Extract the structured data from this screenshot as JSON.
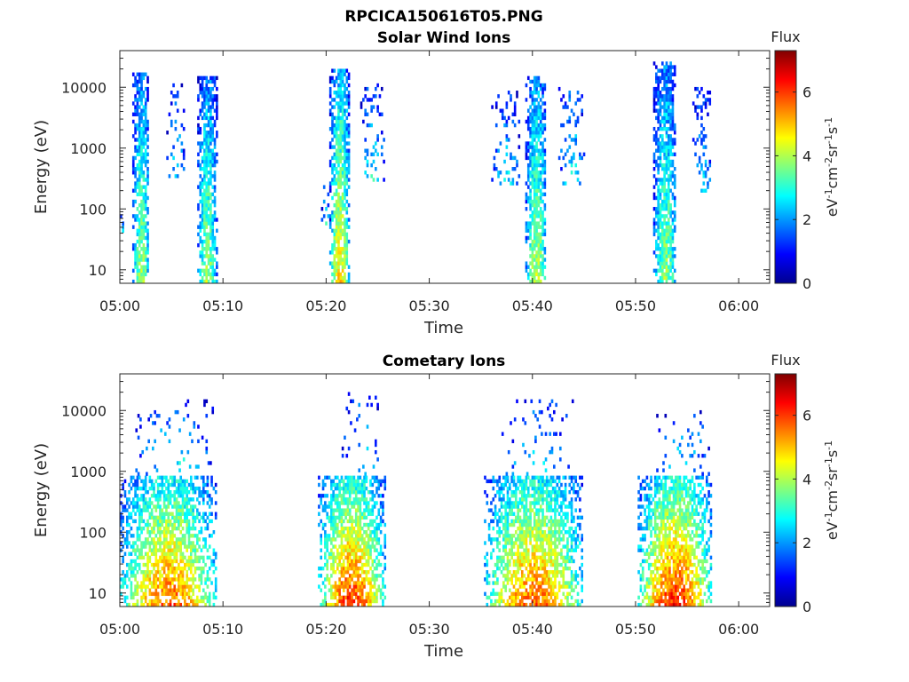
{
  "figure_title": "RPCICA150616T05.PNG",
  "chart_data": [
    {
      "type": "heatmap",
      "title": "Solar Wind Ions",
      "xlabel": "Time",
      "ylabel": "Energy (eV)",
      "x_ticks": [
        "05:00",
        "05:10",
        "05:20",
        "05:30",
        "05:40",
        "05:50",
        "06:00"
      ],
      "xlim": [
        "05:00",
        "06:03"
      ],
      "y_scale": "log",
      "y_ticks": [
        "10",
        "100",
        "1000",
        "10000"
      ],
      "ylim": [
        6,
        40000
      ],
      "grid": false,
      "colorbar": {
        "label_top": "Flux",
        "label": "eV-1cm-2sr-1s-1",
        "ticks": [
          "0",
          "2",
          "4",
          "6"
        ],
        "range": [
          0,
          7.3
        ],
        "colormap": "jet"
      },
      "bursts": [
        {
          "start_min": 0.0,
          "end_min": 0.3,
          "emin": 30,
          "emax": 90,
          "peak_flux": 3.0,
          "density": 0.5
        },
        {
          "start_min": 1.2,
          "end_min": 2.8,
          "emin": 6,
          "emax": 17000,
          "peak_flux": 4.0,
          "density": 0.85
        },
        {
          "start_min": 4.5,
          "end_min": 6.2,
          "emin": 300,
          "emax": 14000,
          "peak_flux": 2.5,
          "density": 0.2
        },
        {
          "start_min": 7.5,
          "end_min": 9.3,
          "emin": 6,
          "emax": 15000,
          "peak_flux": 4.0,
          "density": 0.85
        },
        {
          "start_min": 19.5,
          "end_min": 20.3,
          "emin": 40,
          "emax": 250,
          "peak_flux": 3.0,
          "density": 0.3
        },
        {
          "start_min": 20.3,
          "end_min": 22.2,
          "emin": 6,
          "emax": 20000,
          "peak_flux": 4.8,
          "density": 0.9
        },
        {
          "start_min": 23.3,
          "end_min": 25.5,
          "emin": 300,
          "emax": 11000,
          "peak_flux": 2.8,
          "density": 0.25
        },
        {
          "start_min": 36.0,
          "end_min": 38.7,
          "emin": 250,
          "emax": 9000,
          "peak_flux": 2.5,
          "density": 0.2
        },
        {
          "start_min": 39.3,
          "end_min": 41.3,
          "emin": 6,
          "emax": 15000,
          "peak_flux": 4.2,
          "density": 0.85
        },
        {
          "start_min": 42.5,
          "end_min": 45.0,
          "emin": 250,
          "emax": 10000,
          "peak_flux": 2.8,
          "density": 0.2
        },
        {
          "start_min": 51.7,
          "end_min": 53.9,
          "emin": 6,
          "emax": 27000,
          "peak_flux": 3.8,
          "density": 0.85
        },
        {
          "start_min": 55.5,
          "end_min": 57.3,
          "emin": 200,
          "emax": 10000,
          "peak_flux": 2.5,
          "density": 0.25
        }
      ]
    },
    {
      "type": "heatmap",
      "title": "Cometary Ions",
      "xlabel": "Time",
      "ylabel": "Energy (eV)",
      "x_ticks": [
        "05:00",
        "05:10",
        "05:20",
        "05:30",
        "05:40",
        "05:50",
        "06:00"
      ],
      "xlim": [
        "05:00",
        "06:03"
      ],
      "y_scale": "log",
      "y_ticks": [
        "10",
        "100",
        "1000",
        "10000"
      ],
      "ylim": [
        6,
        40000
      ],
      "grid": false,
      "colorbar": {
        "label_top": "Flux",
        "label": "eV-1cm-2sr-1s-1",
        "ticks": [
          "0",
          "2",
          "4",
          "6"
        ],
        "range": [
          0,
          7.3
        ],
        "colormap": "jet"
      },
      "bursts": [
        {
          "start_min": 0.0,
          "end_min": 9.3,
          "emin": 6,
          "emax": 800,
          "peak_flux": 5.8,
          "density": 0.75
        },
        {
          "start_min": 1.5,
          "end_min": 9.0,
          "emin": 800,
          "emax": 16000,
          "peak_flux": 2.8,
          "density": 0.1
        },
        {
          "start_min": 19.2,
          "end_min": 25.6,
          "emin": 6,
          "emax": 800,
          "peak_flux": 6.2,
          "density": 0.8
        },
        {
          "start_min": 21.5,
          "end_min": 25.0,
          "emin": 800,
          "emax": 20000,
          "peak_flux": 2.6,
          "density": 0.1
        },
        {
          "start_min": 35.3,
          "end_min": 44.8,
          "emin": 6,
          "emax": 900,
          "peak_flux": 5.8,
          "density": 0.78
        },
        {
          "start_min": 37.0,
          "end_min": 44.0,
          "emin": 900,
          "emax": 16000,
          "peak_flux": 2.6,
          "density": 0.1
        },
        {
          "start_min": 50.2,
          "end_min": 57.3,
          "emin": 6,
          "emax": 900,
          "peak_flux": 6.3,
          "density": 0.8
        },
        {
          "start_min": 52.0,
          "end_min": 57.2,
          "emin": 900,
          "emax": 10000,
          "peak_flux": 2.6,
          "density": 0.1
        }
      ]
    }
  ]
}
